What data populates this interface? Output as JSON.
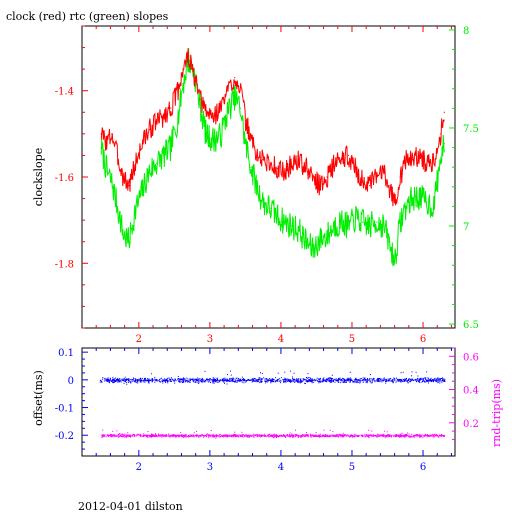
{
  "title": "clock (red) rtc (green) slopes",
  "footer": "2012-04-01 dilston",
  "colors": {
    "red": "#ff0000",
    "green": "#00ee00",
    "blue": "#0000ff",
    "magenta": "#ff00ff",
    "frame": "#000000"
  },
  "chart_data": [
    {
      "type": "line",
      "title": "clock (red) rtc (green) slopes",
      "ylabel": "clockslope",
      "y2label": "",
      "xlim": [
        1.2,
        6.45
      ],
      "ylim": [
        -1.95,
        -1.25
      ],
      "y2lim": [
        6.48,
        8.02
      ],
      "x_ticks": [
        "2",
        "3",
        "4",
        "5",
        "6"
      ],
      "y_ticks": [
        "-1.4",
        "-1.6",
        "-1.8"
      ],
      "y2_ticks": [
        "8",
        "7.5",
        "7",
        "6.5"
      ],
      "series": [
        {
          "name": "clock",
          "color": "red",
          "axis": "left",
          "points": [
            [
              1.47,
              -1.5
            ],
            [
              1.55,
              -1.52
            ],
            [
              1.62,
              -1.5
            ],
            [
              1.7,
              -1.55
            ],
            [
              1.78,
              -1.6
            ],
            [
              1.86,
              -1.62
            ],
            [
              1.95,
              -1.57
            ],
            [
              2.05,
              -1.52
            ],
            [
              2.15,
              -1.49
            ],
            [
              2.25,
              -1.47
            ],
            [
              2.35,
              -1.46
            ],
            [
              2.45,
              -1.44
            ],
            [
              2.55,
              -1.4
            ],
            [
              2.62,
              -1.35
            ],
            [
              2.7,
              -1.32
            ],
            [
              2.78,
              -1.37
            ],
            [
              2.86,
              -1.42
            ],
            [
              2.95,
              -1.45
            ],
            [
              3.05,
              -1.46
            ],
            [
              3.15,
              -1.44
            ],
            [
              3.25,
              -1.4
            ],
            [
              3.35,
              -1.37
            ],
            [
              3.43,
              -1.39
            ],
            [
              3.5,
              -1.47
            ],
            [
              3.58,
              -1.51
            ],
            [
              3.66,
              -1.55
            ],
            [
              3.75,
              -1.56
            ],
            [
              3.85,
              -1.57
            ],
            [
              3.95,
              -1.58
            ],
            [
              4.05,
              -1.59
            ],
            [
              4.15,
              -1.57
            ],
            [
              4.25,
              -1.56
            ],
            [
              4.35,
              -1.58
            ],
            [
              4.45,
              -1.6
            ],
            [
              4.55,
              -1.62
            ],
            [
              4.65,
              -1.6
            ],
            [
              4.75,
              -1.57
            ],
            [
              4.85,
              -1.56
            ],
            [
              4.95,
              -1.55
            ],
            [
              5.05,
              -1.58
            ],
            [
              5.15,
              -1.61
            ],
            [
              5.25,
              -1.62
            ],
            [
              5.35,
              -1.6
            ],
            [
              5.45,
              -1.58
            ],
            [
              5.52,
              -1.62
            ],
            [
              5.6,
              -1.66
            ],
            [
              5.68,
              -1.6
            ],
            [
              5.76,
              -1.56
            ],
            [
              5.85,
              -1.56
            ],
            [
              5.95,
              -1.55
            ],
            [
              6.05,
              -1.57
            ],
            [
              6.15,
              -1.56
            ],
            [
              6.25,
              -1.5
            ],
            [
              6.3,
              -1.45
            ]
          ]
        },
        {
          "name": "rtc",
          "color": "green",
          "axis": "right",
          "points": [
            [
              1.47,
              7.4
            ],
            [
              1.55,
              7.28
            ],
            [
              1.62,
              7.22
            ],
            [
              1.7,
              7.1
            ],
            [
              1.78,
              6.96
            ],
            [
              1.86,
              6.92
            ],
            [
              1.95,
              7.08
            ],
            [
              2.05,
              7.18
            ],
            [
              2.15,
              7.28
            ],
            [
              2.25,
              7.32
            ],
            [
              2.35,
              7.36
            ],
            [
              2.45,
              7.4
            ],
            [
              2.55,
              7.55
            ],
            [
              2.62,
              7.72
            ],
            [
              2.7,
              7.85
            ],
            [
              2.78,
              7.78
            ],
            [
              2.86,
              7.62
            ],
            [
              2.95,
              7.46
            ],
            [
              3.05,
              7.44
            ],
            [
              3.15,
              7.46
            ],
            [
              3.25,
              7.58
            ],
            [
              3.35,
              7.66
            ],
            [
              3.43,
              7.6
            ],
            [
              3.5,
              7.42
            ],
            [
              3.58,
              7.3
            ],
            [
              3.66,
              7.2
            ],
            [
              3.75,
              7.12
            ],
            [
              3.85,
              7.09
            ],
            [
              3.95,
              7.05
            ],
            [
              4.05,
              7.02
            ],
            [
              4.15,
              7.0
            ],
            [
              4.25,
              6.98
            ],
            [
              4.35,
              6.92
            ],
            [
              4.45,
              6.88
            ],
            [
              4.55,
              6.93
            ],
            [
              4.65,
              6.95
            ],
            [
              4.75,
              7.0
            ],
            [
              4.85,
              7.02
            ],
            [
              4.95,
              7.0
            ],
            [
              5.05,
              7.04
            ],
            [
              5.15,
              7.02
            ],
            [
              5.25,
              7.0
            ],
            [
              5.35,
              7.02
            ],
            [
              5.45,
              7.0
            ],
            [
              5.52,
              6.92
            ],
            [
              5.6,
              6.82
            ],
            [
              5.68,
              7.02
            ],
            [
              5.76,
              7.1
            ],
            [
              5.85,
              7.14
            ],
            [
              5.95,
              7.15
            ],
            [
              6.05,
              7.12
            ],
            [
              6.15,
              7.1
            ],
            [
              6.25,
              7.35
            ],
            [
              6.3,
              7.42
            ]
          ]
        }
      ]
    },
    {
      "type": "scatter",
      "ylabel": "offset(ms)",
      "y2label": "rnd-trip(ms)",
      "xlim": [
        1.2,
        6.45
      ],
      "ylim": [
        -0.275,
        0.115
      ],
      "y2lim": [
        0.0,
        0.65
      ],
      "x_ticks": [
        "2",
        "3",
        "4",
        "5",
        "6"
      ],
      "y_ticks": [
        "0.1",
        "0",
        "-0.1",
        "-0.2"
      ],
      "y2_ticks": [
        "0.6",
        "0.4",
        "0.2"
      ],
      "series": [
        {
          "name": "offset",
          "color": "blue",
          "axis": "left",
          "x_range": [
            1.45,
            6.3
          ],
          "center": 0.0,
          "spread": 0.012
        },
        {
          "name": "rnd-trip",
          "color": "magenta",
          "axis": "right",
          "x_range": [
            1.45,
            6.3
          ],
          "center": 0.125,
          "spread": 0.012
        }
      ]
    }
  ]
}
